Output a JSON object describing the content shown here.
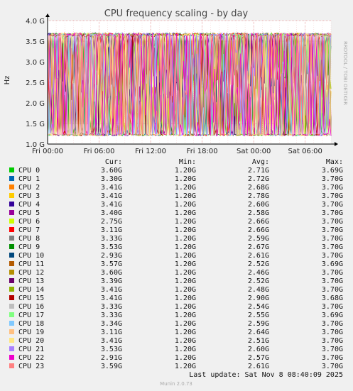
{
  "chart_data": {
    "type": "line",
    "title": "CPU frequency scaling - by day",
    "ylabel": "Hz",
    "xlabel": "",
    "side_label": "RRDTOOL / TOBI OETIKER",
    "ylim": [
      1.0,
      4.0
    ],
    "y_ticks": [
      {
        "value": 1.0,
        "label": "1.0 G"
      },
      {
        "value": 1.5,
        "label": "1.5 G"
      },
      {
        "value": 2.0,
        "label": "2.0 G"
      },
      {
        "value": 2.5,
        "label": "2.5 G"
      },
      {
        "value": 3.0,
        "label": "3.0 G"
      },
      {
        "value": 3.5,
        "label": "3.5 G"
      },
      {
        "value": 4.0,
        "label": "4.0 G"
      }
    ],
    "x_ticks": [
      "Fri 00:00",
      "Fri 06:00",
      "Fri 12:00",
      "Fri 18:00",
      "Sat 00:00",
      "Sat 06:00"
    ],
    "x_range_hours": [
      0,
      33
    ],
    "x_tick_hours": [
      0,
      6,
      12,
      18,
      24,
      30
    ],
    "grid": true,
    "legend_headers": {
      "cur": "Cur:",
      "min": "Min:",
      "avg": "Avg:",
      "max": "Max:"
    },
    "series": [
      {
        "name": "CPU 0",
        "color": "#00cc00",
        "cur": "3.60G",
        "min": "1.20G",
        "avg": "2.71G",
        "max": "3.69G"
      },
      {
        "name": "CPU 1",
        "color": "#0066b3",
        "cur": "3.30G",
        "min": "1.20G",
        "avg": "2.72G",
        "max": "3.70G"
      },
      {
        "name": "CPU 2",
        "color": "#ff8000",
        "cur": "3.41G",
        "min": "1.20G",
        "avg": "2.68G",
        "max": "3.70G"
      },
      {
        "name": "CPU 3",
        "color": "#ffcc00",
        "cur": "3.41G",
        "min": "1.20G",
        "avg": "2.78G",
        "max": "3.70G"
      },
      {
        "name": "CPU 4",
        "color": "#330099",
        "cur": "3.41G",
        "min": "1.20G",
        "avg": "2.60G",
        "max": "3.70G"
      },
      {
        "name": "CPU 5",
        "color": "#990099",
        "cur": "3.40G",
        "min": "1.20G",
        "avg": "2.58G",
        "max": "3.70G"
      },
      {
        "name": "CPU 6",
        "color": "#ccff00",
        "cur": "2.75G",
        "min": "1.20G",
        "avg": "2.66G",
        "max": "3.70G"
      },
      {
        "name": "CPU 7",
        "color": "#ff0000",
        "cur": "3.11G",
        "min": "1.20G",
        "avg": "2.66G",
        "max": "3.70G"
      },
      {
        "name": "CPU 8",
        "color": "#808080",
        "cur": "3.33G",
        "min": "1.20G",
        "avg": "2.59G",
        "max": "3.70G"
      },
      {
        "name": "CPU 9",
        "color": "#008f00",
        "cur": "3.53G",
        "min": "1.20G",
        "avg": "2.67G",
        "max": "3.70G"
      },
      {
        "name": "CPU 10",
        "color": "#00487d",
        "cur": "2.93G",
        "min": "1.20G",
        "avg": "2.61G",
        "max": "3.70G"
      },
      {
        "name": "CPU 11",
        "color": "#b35a00",
        "cur": "3.57G",
        "min": "1.20G",
        "avg": "2.52G",
        "max": "3.69G"
      },
      {
        "name": "CPU 12",
        "color": "#b38f00",
        "cur": "3.60G",
        "min": "1.20G",
        "avg": "2.46G",
        "max": "3.70G"
      },
      {
        "name": "CPU 13",
        "color": "#6b006b",
        "cur": "3.39G",
        "min": "1.20G",
        "avg": "2.52G",
        "max": "3.70G"
      },
      {
        "name": "CPU 14",
        "color": "#8fb300",
        "cur": "3.41G",
        "min": "1.20G",
        "avg": "2.48G",
        "max": "3.70G"
      },
      {
        "name": "CPU 15",
        "color": "#b30000",
        "cur": "3.41G",
        "min": "1.20G",
        "avg": "2.90G",
        "max": "3.68G"
      },
      {
        "name": "CPU 16",
        "color": "#bebebe",
        "cur": "3.33G",
        "min": "1.20G",
        "avg": "2.54G",
        "max": "3.70G"
      },
      {
        "name": "CPU 17",
        "color": "#80ff80",
        "cur": "3.33G",
        "min": "1.20G",
        "avg": "2.55G",
        "max": "3.69G"
      },
      {
        "name": "CPU 18",
        "color": "#80c9ff",
        "cur": "3.34G",
        "min": "1.20G",
        "avg": "2.59G",
        "max": "3.70G"
      },
      {
        "name": "CPU 19",
        "color": "#ffc080",
        "cur": "3.11G",
        "min": "1.20G",
        "avg": "2.64G",
        "max": "3.70G"
      },
      {
        "name": "CPU 20",
        "color": "#ffe680",
        "cur": "3.41G",
        "min": "1.20G",
        "avg": "2.51G",
        "max": "3.70G"
      },
      {
        "name": "CPU 21",
        "color": "#aa80ff",
        "cur": "3.53G",
        "min": "1.20G",
        "avg": "2.60G",
        "max": "3.70G"
      },
      {
        "name": "CPU 22",
        "color": "#ee00cc",
        "cur": "2.91G",
        "min": "1.20G",
        "avg": "2.57G",
        "max": "3.70G"
      },
      {
        "name": "CPU 23",
        "color": "#ff8080",
        "cur": "3.59G",
        "min": "1.20G",
        "avg": "2.61G",
        "max": "3.70G"
      }
    ],
    "footer": "Last update: Sat Nov  8 08:40:09 2025",
    "version": "Munin 2.0.73"
  }
}
